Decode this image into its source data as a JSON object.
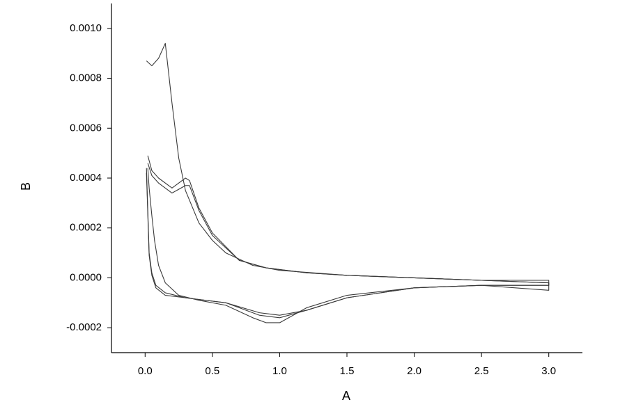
{
  "chart_data": {
    "type": "line",
    "x_label": "A",
    "y_label": "B",
    "xlim": [
      -0.25,
      3.25
    ],
    "ylim": [
      -0.0003,
      0.0011
    ],
    "xticks": [
      {
        "value": 0,
        "label": "0.0"
      },
      0.5,
      {
        "value": 1,
        "label": "1.0"
      },
      1.5,
      {
        "value": 2,
        "label": "2.0"
      },
      2.5,
      {
        "value": 3,
        "label": "3.0"
      }
    ],
    "yticks": [
      -0.0002,
      {
        "value": 0,
        "label": "0.0000"
      },
      0.0002,
      0.0004,
      0.0006,
      0.0008,
      {
        "value": 0.001,
        "label": "0.0010"
      }
    ],
    "series": [
      {
        "color": "#3a3a3a",
        "x": [
          0.01,
          0.05,
          0.1,
          0.15,
          0.2,
          0.25,
          0.3,
          0.4,
          0.5,
          0.6,
          0.8,
          1.0,
          1.5,
          2.0,
          2.5,
          3.0,
          3.0,
          2.5,
          2.0,
          1.5,
          1.2,
          1.0,
          0.9,
          0.8,
          0.6,
          0.4,
          0.25,
          0.15,
          0.1,
          0.07,
          0.05,
          0.03,
          0.02
        ],
        "values": [
          0.00087,
          0.00085,
          0.00088,
          0.00094,
          0.0007,
          0.00048,
          0.00035,
          0.00022,
          0.00015,
          0.0001,
          5e-05,
          3e-05,
          1e-05,
          0.0,
          -1e-05,
          -1e-05,
          -5e-05,
          -3e-05,
          -4e-05,
          -7e-05,
          -0.00012,
          -0.00018,
          -0.00018,
          -0.00016,
          -0.00011,
          -9e-05,
          -7e-05,
          -2e-05,
          5e-05,
          0.00015,
          0.00025,
          0.00036,
          0.00044
        ]
      },
      {
        "color": "#3a3a3a",
        "x": [
          0.02,
          0.05,
          0.1,
          0.2,
          0.3,
          0.33,
          0.4,
          0.5,
          0.7,
          0.9,
          1.2,
          1.5,
          2.0,
          2.5,
          3.0,
          3.0,
          2.5,
          2.0,
          1.5,
          1.2,
          1.0,
          0.85,
          0.6,
          0.3,
          0.15,
          0.08,
          0.05,
          0.03,
          0.01
        ],
        "values": [
          0.00049,
          0.00043,
          0.0004,
          0.00036,
          0.0004,
          0.00039,
          0.00028,
          0.00018,
          7e-05,
          4e-05,
          2e-05,
          1e-05,
          0.0,
          -1e-05,
          -2e-05,
          -3e-05,
          -3e-05,
          -4e-05,
          -8e-05,
          -0.00013,
          -0.00016,
          -0.00015,
          -0.0001,
          -8e-05,
          -6e-05,
          -3e-05,
          2e-05,
          0.0001,
          0.00044
        ]
      },
      {
        "color": "#3a3a3a",
        "x": [
          0.02,
          0.05,
          0.1,
          0.2,
          0.3,
          0.33,
          0.4,
          0.5,
          0.7,
          0.9,
          1.2,
          1.5,
          2.0,
          2.5,
          3.0,
          3.0,
          2.5,
          2.0,
          1.5,
          1.2,
          1.0,
          0.85,
          0.6,
          0.3,
          0.15,
          0.08,
          0.05,
          0.03,
          0.01
        ],
        "values": [
          0.00046,
          0.00041,
          0.00038,
          0.00034,
          0.00037,
          0.00037,
          0.00027,
          0.00017,
          7e-05,
          4e-05,
          2e-05,
          1e-05,
          0.0,
          -1e-05,
          -2e-05,
          -3e-05,
          -3e-05,
          -4e-05,
          -8e-05,
          -0.00013,
          -0.00015,
          -0.00014,
          -0.0001,
          -8e-05,
          -7e-05,
          -4e-05,
          1e-05,
          9e-05,
          0.00042
        ]
      }
    ]
  }
}
